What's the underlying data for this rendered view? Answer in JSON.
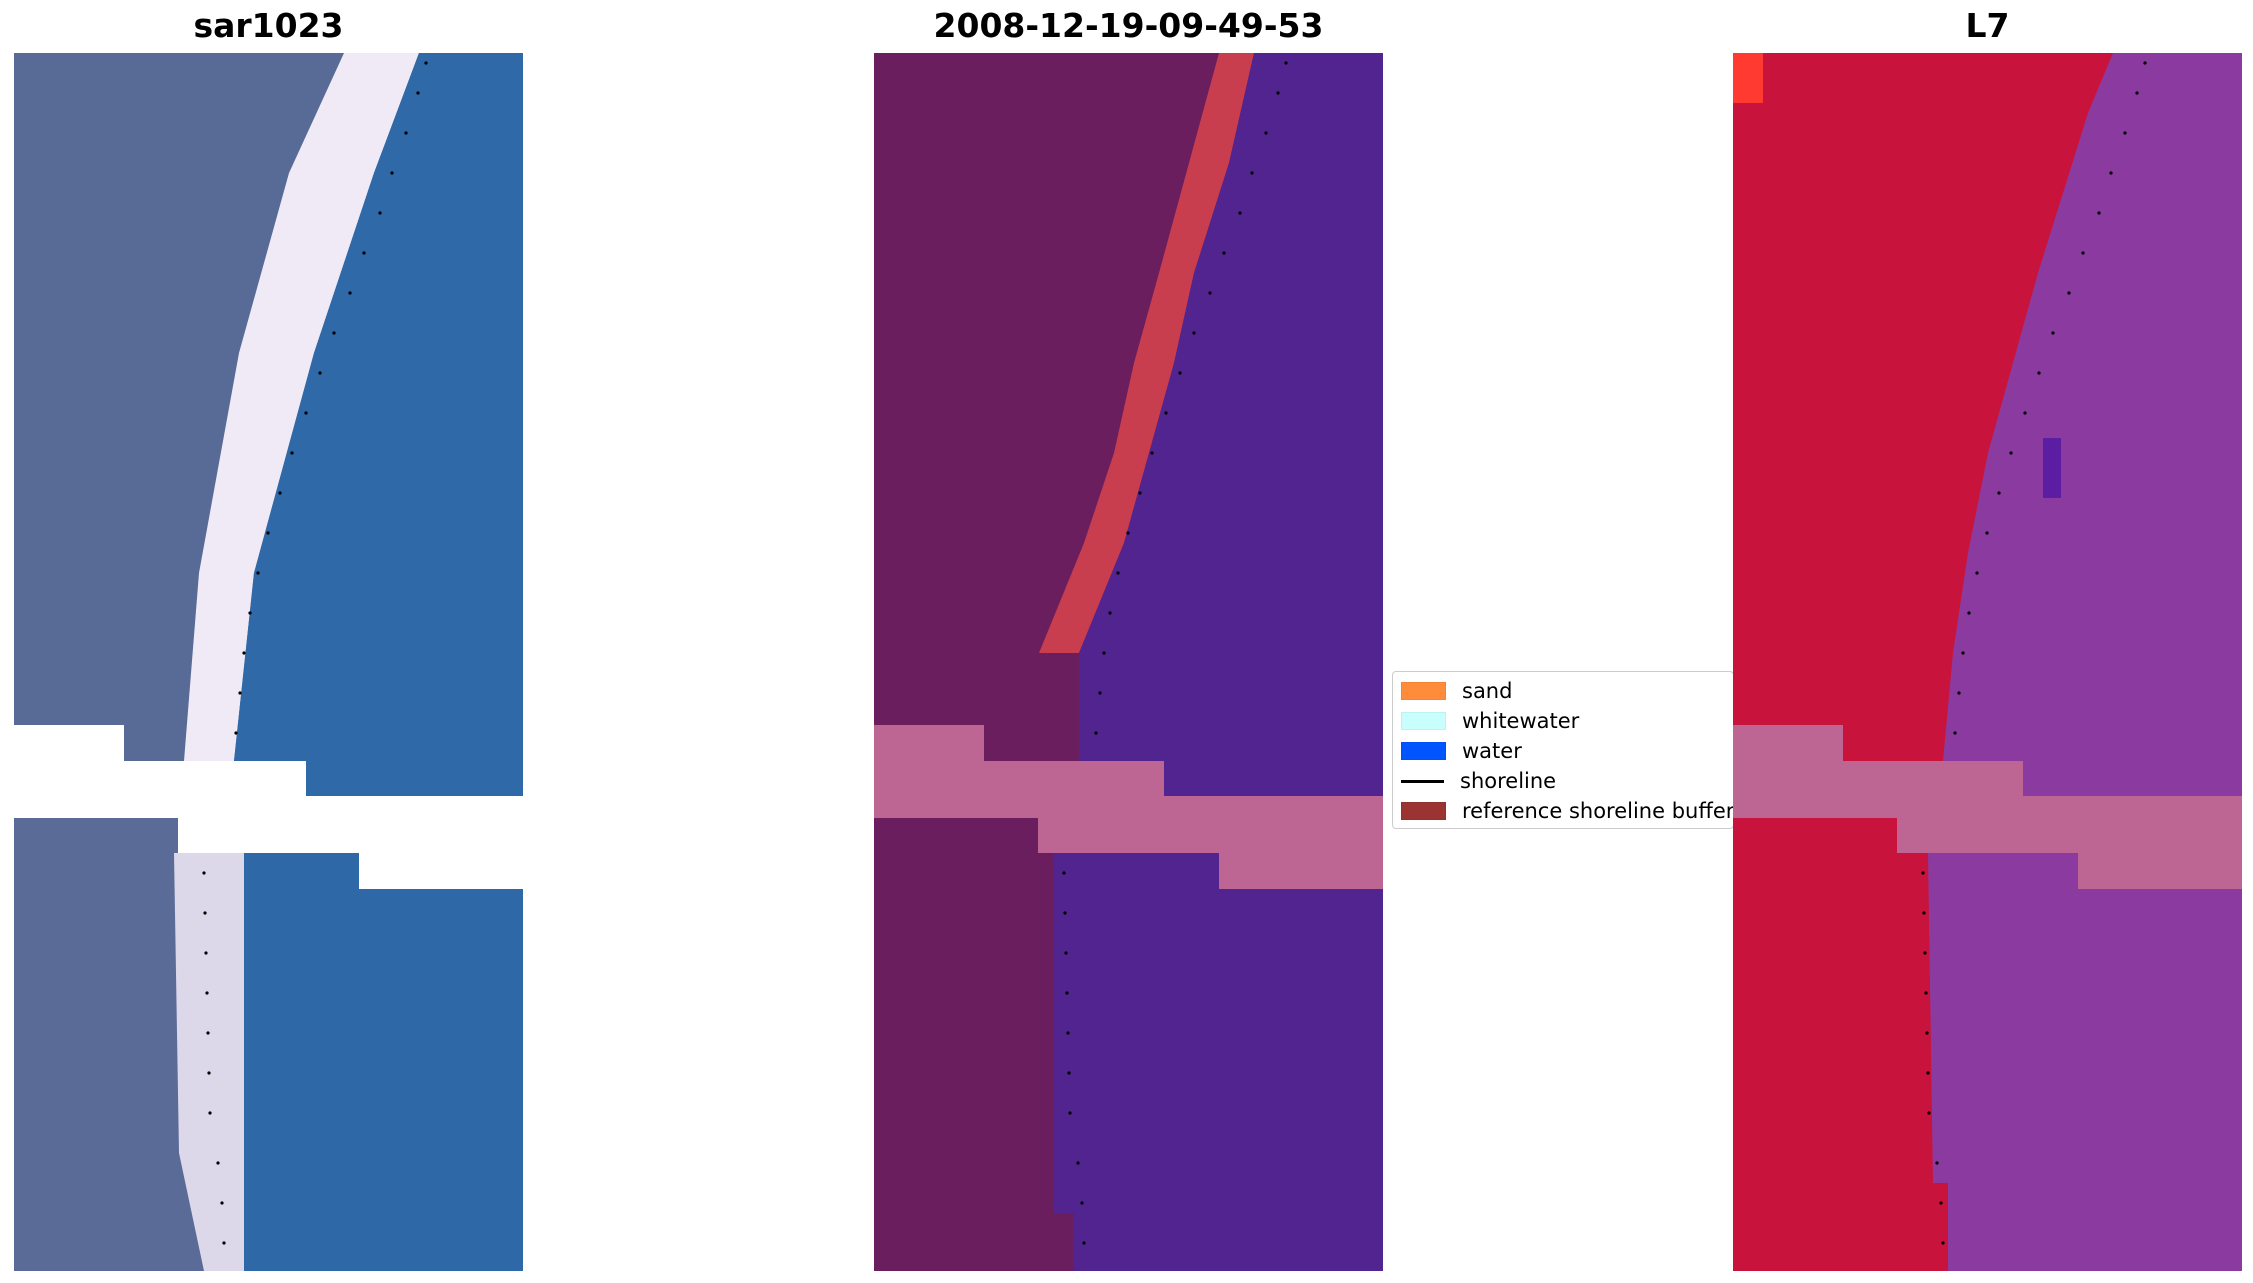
{
  "panels": {
    "left": {
      "title": "sar1023"
    },
    "middle": {
      "title": "2008-12-19-09-49-53"
    },
    "right": {
      "title": "L7"
    }
  },
  "legend": {
    "items": [
      {
        "label": "sand",
        "color": "#ff8c3a",
        "kind": "patch"
      },
      {
        "label": "whitewater",
        "color": "#c8fffd",
        "kind": "patch"
      },
      {
        "label": "water",
        "color": "#0055ff",
        "kind": "patch"
      },
      {
        "label": "shoreline",
        "color": "#000000",
        "kind": "line"
      },
      {
        "label": "reference shoreline buffer",
        "color": "#9a3331",
        "kind": "patch"
      }
    ]
  },
  "colors": {
    "land_rgb": "#5a6b97",
    "water_rgb": "#2e68a8",
    "whitewater_rgb": "#f2eefa",
    "land_class": "#6b1e5e",
    "water_class": "#52248f",
    "sand_class": "#c73d4f",
    "buffer_band": "#bc6593",
    "ndwi_land": "#c8143c",
    "ndwi_water": "#8a3aa0"
  }
}
